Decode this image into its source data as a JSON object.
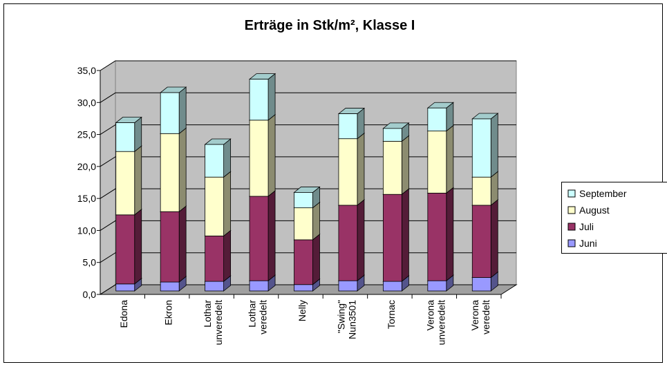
{
  "chart_data": {
    "type": "bar3d_stacked",
    "title": "Erträge in Stk/m², Klasse I",
    "categories": [
      "Edona",
      "Ekron",
      "Lothar unveredelt",
      "Lothar veredelt",
      "Nelly",
      "\"Swing\" Nun3501",
      "Tornac",
      "Verona unveredelt",
      "Verona veredelt"
    ],
    "series": [
      {
        "name": "Juni",
        "color": "#9999ff",
        "values": [
          1.1,
          1.4,
          1.5,
          1.6,
          1.0,
          1.6,
          1.5,
          1.6,
          2.1
        ]
      },
      {
        "name": "Juli",
        "color": "#993366",
        "values": [
          10.8,
          11.0,
          7.1,
          13.2,
          7.0,
          11.8,
          13.6,
          13.7,
          11.3
        ]
      },
      {
        "name": "August",
        "color": "#ffffcc",
        "values": [
          9.9,
          12.2,
          9.2,
          11.9,
          5.0,
          10.4,
          8.3,
          9.7,
          4.4
        ]
      },
      {
        "name": "September",
        "color": "#ccffff",
        "values": [
          4.5,
          6.4,
          5.1,
          6.4,
          2.4,
          3.9,
          2.0,
          3.6,
          9.1
        ]
      }
    ],
    "ylim": [
      0,
      35
    ],
    "yticks": [
      {
        "value": 0,
        "label": "0,0"
      },
      {
        "value": 5,
        "label": "5,0"
      },
      {
        "value": 10,
        "label": "10,0"
      },
      {
        "value": 15,
        "label": "15,0"
      },
      {
        "value": 20,
        "label": "20,0"
      },
      {
        "value": 25,
        "label": "25,0"
      },
      {
        "value": 30,
        "label": "30,0"
      },
      {
        "value": 35,
        "label": "35,0"
      }
    ],
    "grid": true,
    "legend": "right"
  }
}
